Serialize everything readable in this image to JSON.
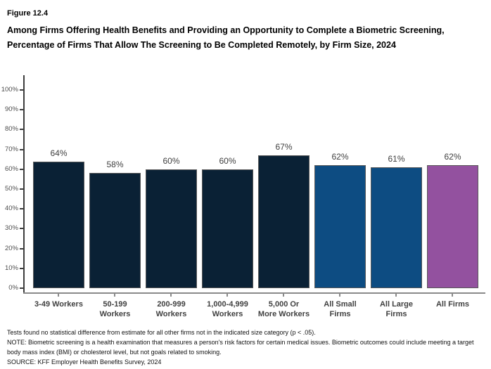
{
  "figure": {
    "label": "Figure 12.4",
    "title": "Among Firms Offering Health Benefits and Providing an Opportunity to Complete a Biometric Screening, Percentage of Firms That Allow The Screening to Be Completed Remotely, by Firm Size, 2024"
  },
  "chart_data": {
    "type": "bar",
    "title": "Percentage of Firms That Allow The Biometric Screening to Be Completed Remotely, by Firm Size, 2024",
    "categories": [
      "3-49 Workers",
      "50-199\nWorkers",
      "200-999\nWorkers",
      "1,000-4,999\nWorkers",
      "5,000 Or\nMore Workers",
      "All Small\nFirms",
      "All Large\nFirms",
      "All Firms"
    ],
    "values": [
      64,
      58,
      60,
      60,
      67,
      62,
      61,
      62
    ],
    "value_labels": [
      "64%",
      "58%",
      "60%",
      "60%",
      "67%",
      "62%",
      "61%",
      "62%"
    ],
    "bar_colors": [
      "#0a2135",
      "#0a2135",
      "#0a2135",
      "#0a2135",
      "#0a2135",
      "#0d4c82",
      "#0d4c82",
      "#93519f"
    ],
    "ytick_values": [
      0,
      10,
      20,
      30,
      40,
      50,
      60,
      70,
      80,
      90,
      100
    ],
    "ytick_labels": [
      "0%",
      "10%",
      "20%",
      "30%",
      "40%",
      "50%",
      "60%",
      "70%",
      "80%",
      "90%",
      "100%"
    ],
    "xlabel": "",
    "ylabel": "",
    "ylim": [
      0,
      107
    ],
    "grid": false,
    "legend": "none"
  },
  "footnotes": {
    "stat": "Tests found no statistical difference from estimate for all other firms not in the indicated size category (p < .05).",
    "note": "NOTE: Biometric screening is a health examination that measures a person's risk factors for certain medical issues. Biometric outcomes could include meeting a target body mass index (BMI) or cholesterol level, but not goals related to smoking.",
    "source": "SOURCE: KFF Employer Health Benefits Survey, 2024"
  },
  "colors": {
    "navy": "#0a2135",
    "blue": "#0d4c82",
    "purple": "#93519f",
    "bar_border": "#595959",
    "axis_gray": "#8a8a8a",
    "axis_dark": "#3d3d3d",
    "label_text": "#404040"
  }
}
